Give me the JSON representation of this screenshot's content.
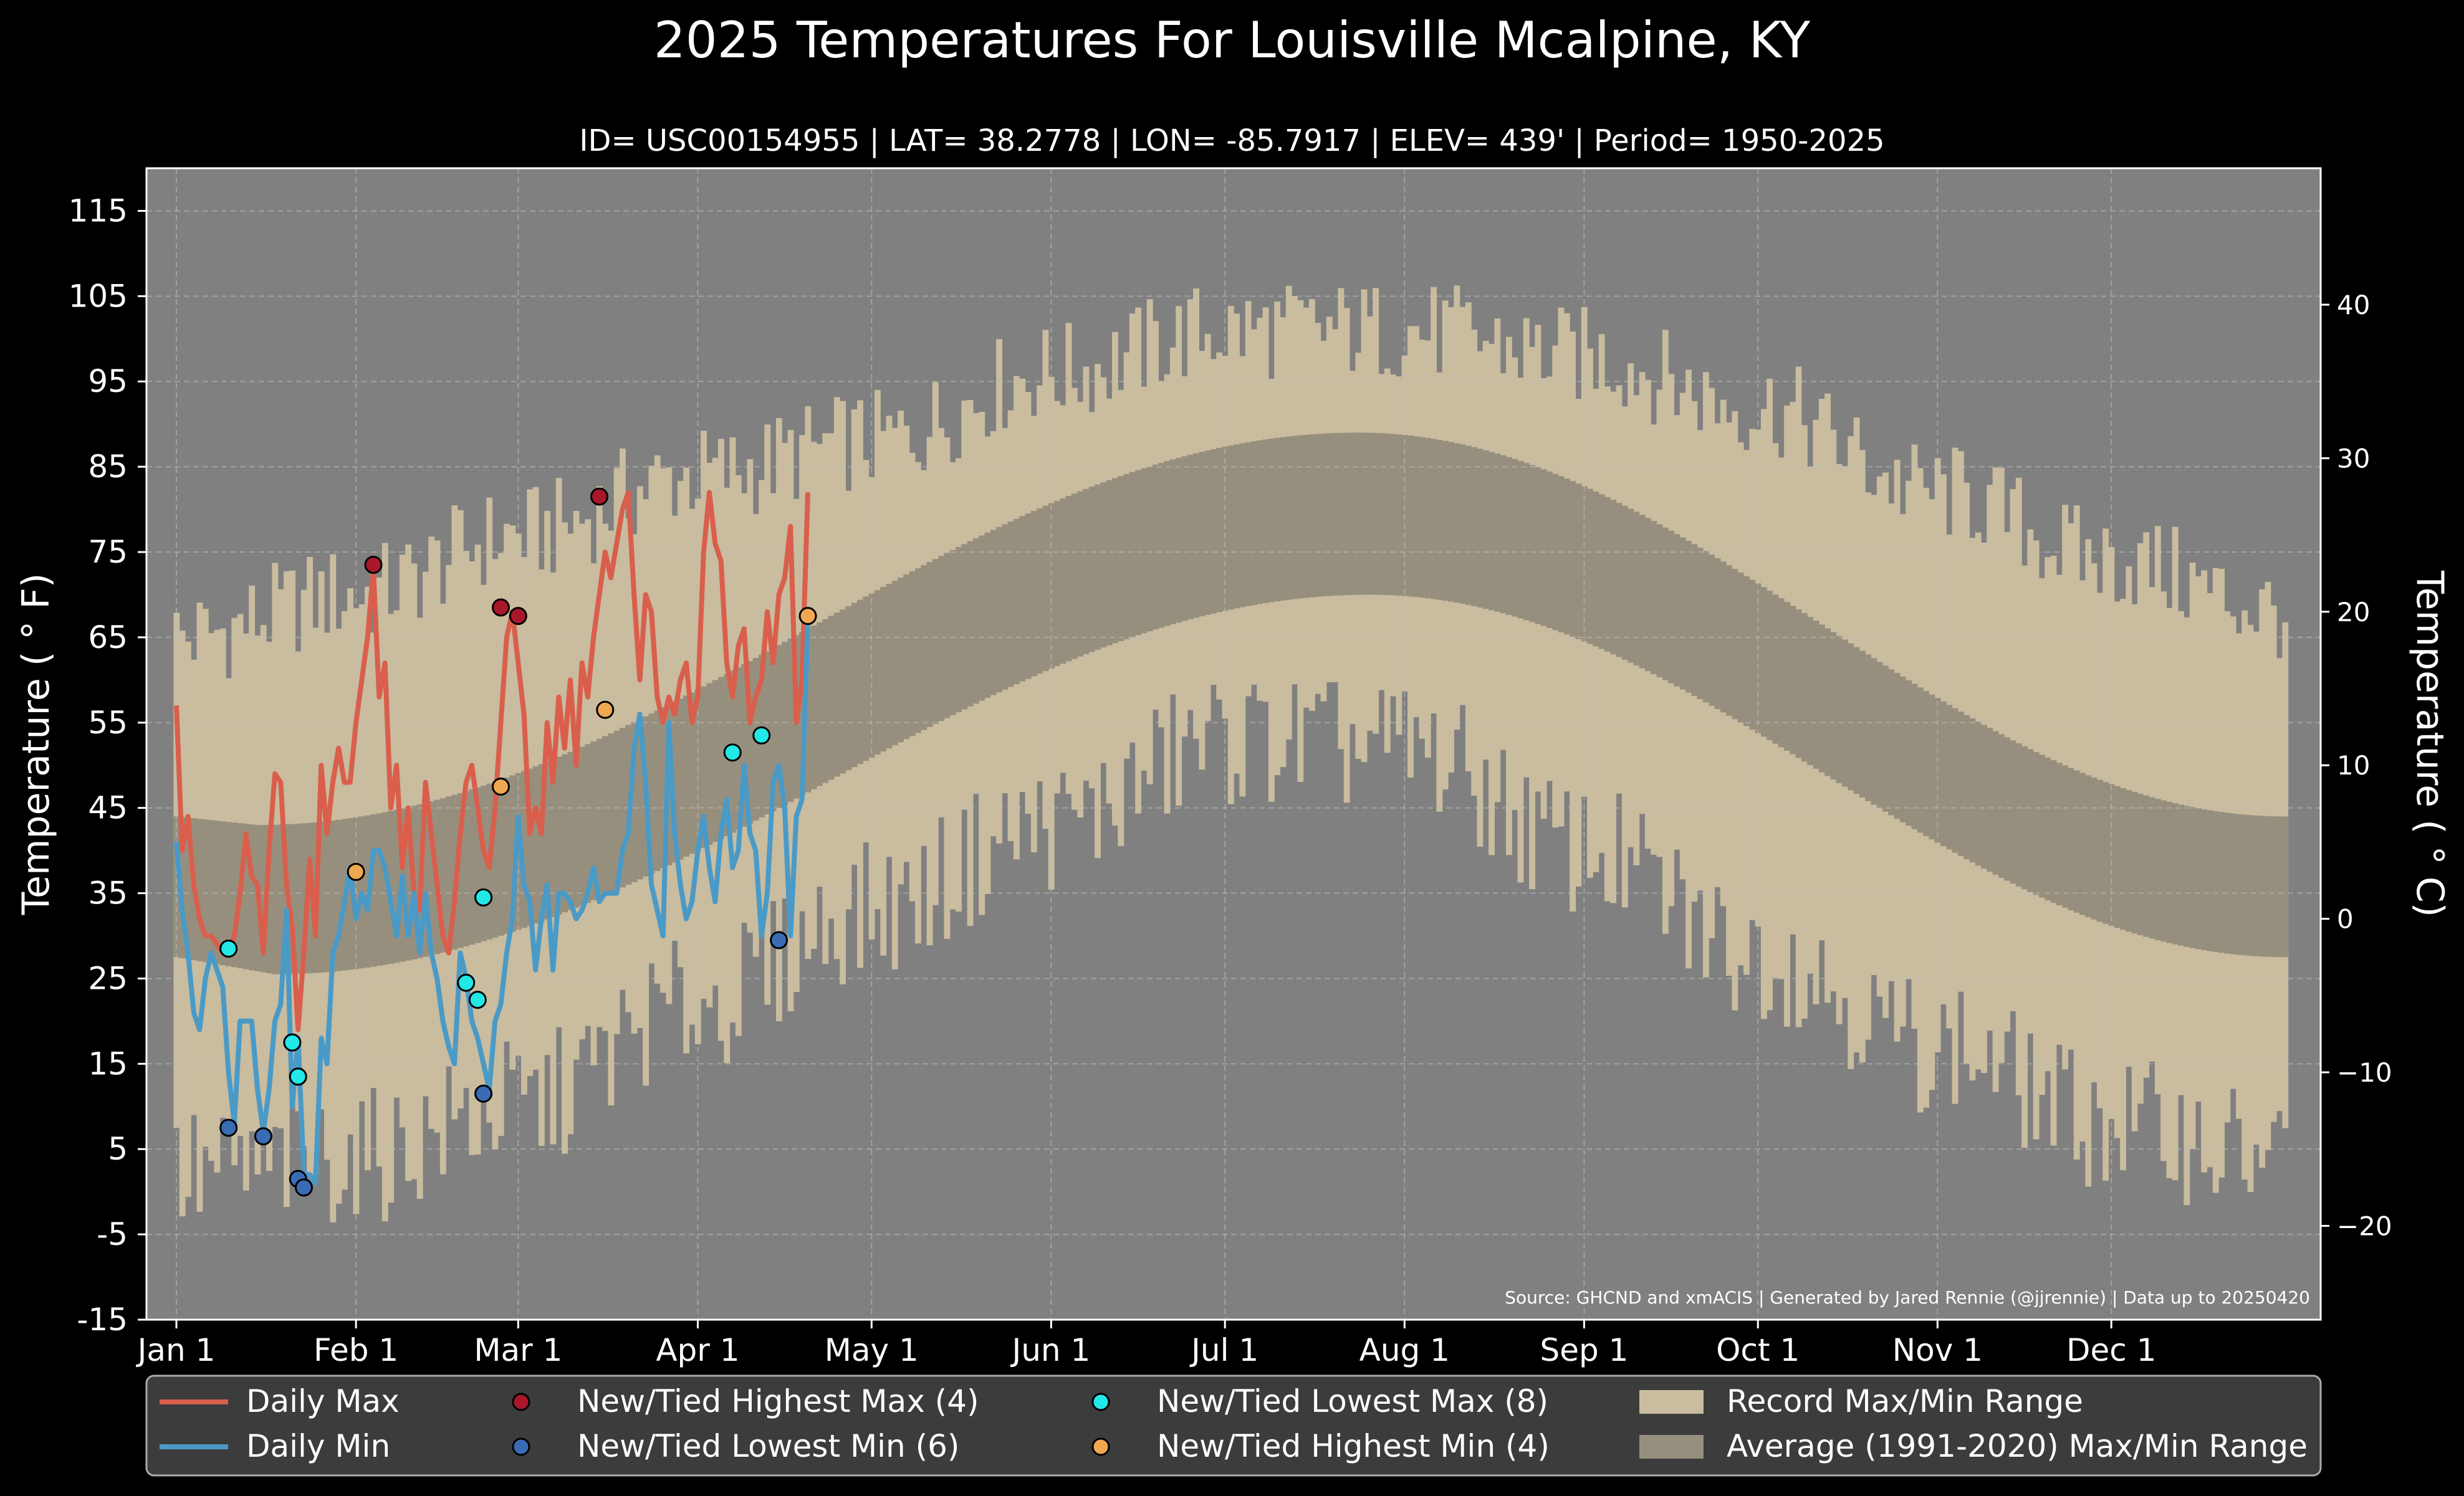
{
  "chart_data": {
    "type": "line",
    "title": "2025 Temperatures For Louisville Mcalpine, KY",
    "subtitle": "ID= USC00154955 | LAT= 38.2778 | LON= -85.7917 | ELEV= 439' | Period= 1950-2025",
    "ylabel": "Temperature ($^\\circ$F)",
    "ylabel_display": "Temperature ( ° F)",
    "ylabel_right_display": "Temperature ( ° C)",
    "ylim": [
      -15,
      120
    ],
    "yticks": [
      -15,
      -5,
      5,
      15,
      25,
      35,
      45,
      55,
      65,
      75,
      85,
      95,
      105,
      115
    ],
    "yticks_right": [
      -20,
      -10,
      0,
      10,
      20,
      30,
      40
    ],
    "x_tick_labels": [
      "Jan 1",
      "Feb 1",
      "Mar 1",
      "Apr 1",
      "May 1",
      "Jun 1",
      "Jul 1",
      "Aug 1",
      "Sep 1",
      "Oct 1",
      "Nov 1",
      "Dec 1"
    ],
    "x_tick_days": [
      1,
      32,
      60,
      91,
      121,
      152,
      182,
      213,
      244,
      274,
      305,
      335
    ],
    "grid": true,
    "source": "Source: GHCND and xmACIS | Generated by Jared Rennie (@jjrennie) | Data up to 20250420",
    "normals": {
      "max": {
        "min_day": 15,
        "min_value": 43,
        "max_day": 205,
        "max_value": 89,
        "dec31_value": 44
      },
      "min": {
        "min_day": 18,
        "min_value": 25.5,
        "max_day": 207,
        "max_value": 70,
        "dec31_value": 27.5
      }
    },
    "record_range_knots": {
      "max_days": [
        1,
        32,
        60,
        91,
        121,
        152,
        182,
        213,
        244,
        274,
        305,
        335,
        365
      ],
      "max_values": [
        65,
        70,
        77,
        84,
        88,
        96,
        101,
        101,
        98,
        92,
        82,
        74,
        68
      ],
      "min_days": [
        1,
        32,
        60,
        91,
        121,
        152,
        182,
        213,
        244,
        274,
        305,
        335,
        365
      ],
      "min_values": [
        2,
        4,
        10,
        22,
        33,
        43,
        53,
        52,
        40,
        28,
        17,
        8,
        4
      ]
    },
    "series": [
      {
        "name": "Daily Max",
        "color": "#d95f4c",
        "x": [
          1,
          2,
          3,
          4,
          5,
          6,
          7,
          8,
          9,
          10,
          11,
          12,
          13,
          14,
          15,
          16,
          17,
          18,
          19,
          20,
          21,
          22,
          23,
          24,
          25,
          26,
          27,
          28,
          29,
          30,
          31,
          32,
          33,
          34,
          35,
          36,
          37,
          38,
          39,
          40,
          41,
          42,
          43,
          44,
          45,
          46,
          47,
          48,
          49,
          50,
          51,
          52,
          53,
          54,
          55,
          56,
          57,
          58,
          59,
          60,
          61,
          62,
          63,
          64,
          65,
          66,
          67,
          68,
          69,
          70,
          71,
          72,
          73,
          74,
          75,
          76,
          77,
          78,
          79,
          80,
          81,
          82,
          83,
          84,
          85,
          86,
          87,
          88,
          89,
          90,
          91,
          92,
          93,
          94,
          95,
          96,
          97,
          98,
          99,
          100,
          101,
          102,
          103,
          104,
          105,
          106,
          107,
          108,
          109,
          110
        ],
        "values": [
          57,
          40,
          44,
          36,
          32,
          30,
          30,
          29,
          28,
          28,
          30,
          35,
          42,
          37,
          36,
          28,
          40,
          49,
          48,
          36,
          31,
          19,
          28,
          39,
          30,
          50,
          42,
          48,
          52,
          48,
          48,
          55,
          60,
          65,
          73,
          58,
          62,
          45,
          50,
          38,
          45,
          35,
          33,
          48,
          42,
          36,
          30,
          28,
          34,
          42,
          48,
          50,
          45,
          40,
          38,
          45,
          55,
          65,
          68,
          62,
          56,
          42,
          45,
          42,
          55,
          48,
          58,
          52,
          60,
          50,
          62,
          58,
          65,
          70,
          75,
          72,
          76,
          80,
          82,
          70,
          60,
          70,
          68,
          58,
          55,
          58,
          56,
          60,
          62,
          55,
          58,
          75,
          82,
          76,
          74,
          62,
          58,
          64,
          66,
          55,
          58,
          60,
          68,
          62,
          70,
          72,
          78,
          55,
          60,
          82
        ]
      },
      {
        "name": "Daily Min",
        "color": "#4a9ac7",
        "x": [
          1,
          2,
          3,
          4,
          5,
          6,
          7,
          8,
          9,
          10,
          11,
          12,
          13,
          14,
          15,
          16,
          17,
          18,
          19,
          20,
          21,
          22,
          23,
          24,
          25,
          26,
          27,
          28,
          29,
          30,
          31,
          32,
          33,
          34,
          35,
          36,
          37,
          38,
          39,
          40,
          41,
          42,
          43,
          44,
          45,
          46,
          47,
          48,
          49,
          50,
          51,
          52,
          53,
          54,
          55,
          56,
          57,
          58,
          59,
          60,
          61,
          62,
          63,
          64,
          65,
          66,
          67,
          68,
          69,
          70,
          71,
          72,
          73,
          74,
          75,
          76,
          77,
          78,
          79,
          80,
          81,
          82,
          83,
          84,
          85,
          86,
          87,
          88,
          89,
          90,
          91,
          92,
          93,
          94,
          95,
          96,
          97,
          98,
          99,
          100,
          101,
          102,
          103,
          104,
          105,
          106,
          107,
          108,
          109,
          110
        ],
        "values": [
          41,
          33,
          28,
          21,
          19,
          25,
          28,
          26,
          24,
          14,
          8,
          20,
          20,
          20,
          12,
          7,
          12,
          20,
          22,
          33,
          10,
          18,
          2,
          2,
          1,
          18,
          15,
          28,
          30,
          34,
          38,
          32,
          35,
          33,
          40,
          40,
          38,
          34,
          30,
          37,
          30,
          35,
          28,
          35,
          28,
          25,
          20,
          17,
          15,
          28,
          25,
          20,
          18,
          15,
          12,
          20,
          22,
          28,
          32,
          44,
          36,
          34,
          26,
          32,
          36,
          26,
          35,
          35,
          34,
          32,
          33,
          35,
          38,
          34,
          35,
          35,
          35,
          40,
          42,
          52,
          56,
          48,
          36,
          33,
          30,
          55,
          42,
          36,
          32,
          34,
          40,
          44,
          38,
          34,
          42,
          46,
          38,
          40,
          50,
          42,
          40,
          30,
          35,
          48,
          50,
          45,
          30,
          44,
          46,
          67
        ]
      }
    ],
    "markers": [
      {
        "name": "New/Tied Highest Max (4)",
        "color": "#a8182a",
        "points": [
          [
            35,
            73.5
          ],
          [
            57,
            68.5
          ],
          [
            60,
            67.5
          ],
          [
            74,
            81.5
          ]
        ]
      },
      {
        "name": "New/Tied Lowest Min (6)",
        "color": "#3a6cb5",
        "points": [
          [
            10,
            7.5
          ],
          [
            16,
            6.5
          ],
          [
            22,
            1.5
          ],
          [
            23,
            0.5
          ],
          [
            54,
            11.5
          ],
          [
            105,
            29.5
          ]
        ]
      },
      {
        "name": "New/Tied Lowest Max (8)",
        "color": "#22e8e8",
        "points": [
          [
            10,
            28.5
          ],
          [
            21,
            17.5
          ],
          [
            22,
            13.5
          ],
          [
            51,
            24.5
          ],
          [
            53,
            22.5
          ],
          [
            54,
            34.5
          ],
          [
            97,
            51.5
          ],
          [
            102,
            53.5
          ]
        ]
      },
      {
        "name": "New/Tied Highest Min (4)",
        "color": "#f0a850",
        "points": [
          [
            32,
            37.5
          ],
          [
            57,
            47.5
          ],
          [
            75,
            56.5
          ],
          [
            110,
            67.5
          ]
        ]
      }
    ],
    "legend": {
      "placement": "bottom",
      "entries": [
        "Daily Max",
        "Daily Min",
        "New/Tied Highest Max (4)",
        "New/Tied Lowest Min (6)",
        "New/Tied Lowest Max (8)",
        "New/Tied Highest Min (4)",
        "Record Max/Min Range",
        "Average (1991-2020) Max/Min Range"
      ]
    },
    "colors": {
      "figure_bg": "#000000",
      "plot_bg": "#808080",
      "record_range": "#c9bc9f",
      "normal_range": "#978f7e",
      "legend_bg": "#3c3c3c"
    }
  }
}
